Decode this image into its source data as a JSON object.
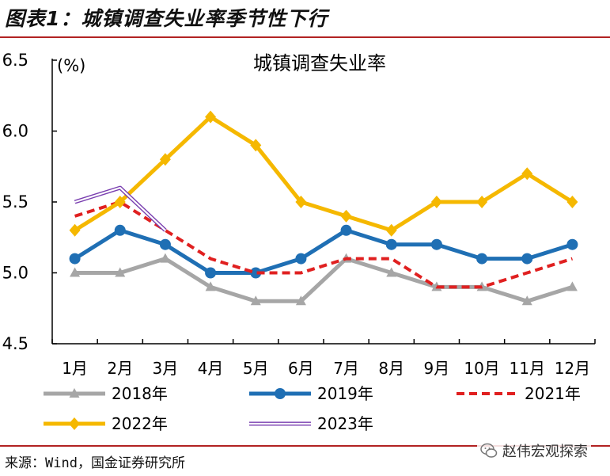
{
  "header": {
    "figure_title": "图表1：城镇调查失业率季节性下行"
  },
  "footer": {
    "source": "来源：Wind，国金证券研究所",
    "watermark_text": "赵伟宏观探索"
  },
  "colors": {
    "2018": "#a6a6a6",
    "2019": "#1f6fb4",
    "2021": "#e02020",
    "2022": "#f5b800",
    "2023": "#7a3fb0",
    "rule": "#b22222"
  },
  "chart_data": {
    "type": "line",
    "title": "城镇调查失业率",
    "unit": "(%)",
    "categories": [
      "1月",
      "2月",
      "3月",
      "4月",
      "5月",
      "6月",
      "7月",
      "8月",
      "9月",
      "10月",
      "11月",
      "12月"
    ],
    "ylim": [
      4.5,
      6.5
    ],
    "yticks": [
      "4.5",
      "5.0",
      "5.5",
      "6.0",
      "6.5"
    ],
    "grid": false,
    "legend_position": "bottom",
    "series": [
      {
        "name": "2018年",
        "style": "gray-triangle",
        "values": [
          5.0,
          5.0,
          5.1,
          4.9,
          4.8,
          4.8,
          5.1,
          5.0,
          4.9,
          4.9,
          4.8,
          4.9
        ]
      },
      {
        "name": "2019年",
        "style": "blue-circle",
        "values": [
          5.1,
          5.3,
          5.2,
          5.0,
          5.0,
          5.1,
          5.3,
          5.2,
          5.2,
          5.1,
          5.1,
          5.2
        ]
      },
      {
        "name": "2021年",
        "style": "red-dashed",
        "values": [
          5.4,
          5.5,
          5.3,
          5.1,
          5.0,
          5.0,
          5.1,
          5.1,
          4.9,
          4.9,
          5.0,
          5.1
        ]
      },
      {
        "name": "2022年",
        "style": "yellow-diamond",
        "values": [
          5.3,
          5.5,
          5.8,
          6.1,
          5.9,
          5.5,
          5.4,
          5.3,
          5.5,
          5.5,
          5.7,
          5.5
        ]
      },
      {
        "name": "2023年",
        "style": "purple-double",
        "values": [
          5.5,
          5.6,
          5.3,
          null,
          null,
          null,
          null,
          null,
          null,
          null,
          null,
          null
        ]
      }
    ]
  }
}
